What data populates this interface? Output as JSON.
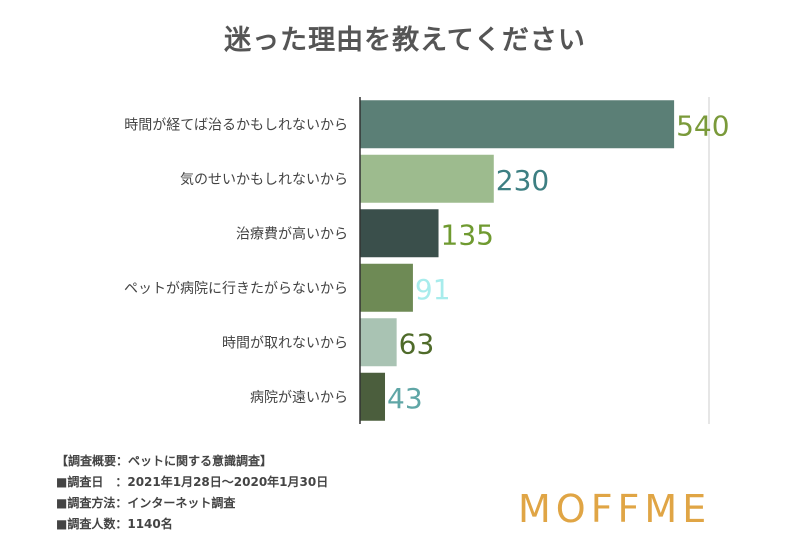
{
  "chart_data": {
    "type": "bar",
    "orientation": "horizontal",
    "title": "迷った理由を教えてください",
    "categories": [
      "時間が経てば治るかもしれないから",
      "気のせいかもしれないから",
      "治療費が高いから",
      "ペットが病院に行きたがらないから",
      "時間が取れないから",
      "病院が遠いから"
    ],
    "values": [
      540,
      230,
      135,
      91,
      63,
      43
    ],
    "bar_colors": [
      "#5b7f76",
      "#9dbb8e",
      "#3a4f4b",
      "#6e8a55",
      "#a9c3b3",
      "#4b5e3d"
    ],
    "label_colors": [
      "#7a9a3a",
      "#3d7f82",
      "#6f9a30",
      "#a8ecec",
      "#4f6b2a",
      "#5fa6a6"
    ],
    "xlim": [
      0,
      600
    ],
    "grid": true
  },
  "survey": {
    "overview": "【調査概要：ペットに関する意識調査】",
    "date": "■調査日　：2021年1月28日〜2020年1月30日",
    "method": "■調査方法：インターネット調査",
    "count": "■調査人数：1140名"
  },
  "logo": "MOFFME"
}
